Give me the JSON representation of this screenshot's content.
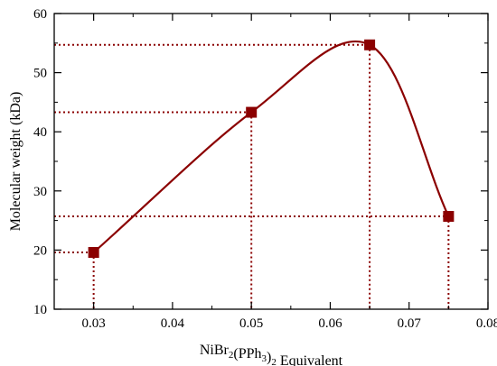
{
  "chart_data": {
    "type": "scatter",
    "xlabel": {
      "parts": [
        {
          "text": "NiBr",
          "sub": false
        },
        {
          "text": "2",
          "sub": true
        },
        {
          "text": "(PPh",
          "sub": false
        },
        {
          "text": "3",
          "sub": true
        },
        {
          "text": ")",
          "sub": false
        },
        {
          "text": "2",
          "sub": true
        },
        {
          "text": " Equivalent",
          "sub": false
        }
      ]
    },
    "ylabel": "Molecular weight (kDa)",
    "xlim": [
      0.025,
      0.08
    ],
    "ylim": [
      10,
      60
    ],
    "xticks": [
      0.03,
      0.04,
      0.05,
      0.06,
      0.07,
      0.08
    ],
    "xtick_labels": [
      "0.03",
      "0.04",
      "0.05",
      "0.06",
      "0.07",
      "0.08"
    ],
    "yticks": [
      10,
      20,
      30,
      40,
      50,
      60
    ],
    "ytick_labels": [
      "10",
      "20",
      "30",
      "40",
      "50",
      "60"
    ],
    "grid": false,
    "series": [
      {
        "x": [
          0.03,
          0.05,
          0.065,
          0.075
        ],
        "y": [
          19.6,
          43.3,
          54.7,
          25.7
        ],
        "color": "#8b0000",
        "marker": "square",
        "line": "smooth",
        "dropline_style": "dotted"
      }
    ]
  }
}
